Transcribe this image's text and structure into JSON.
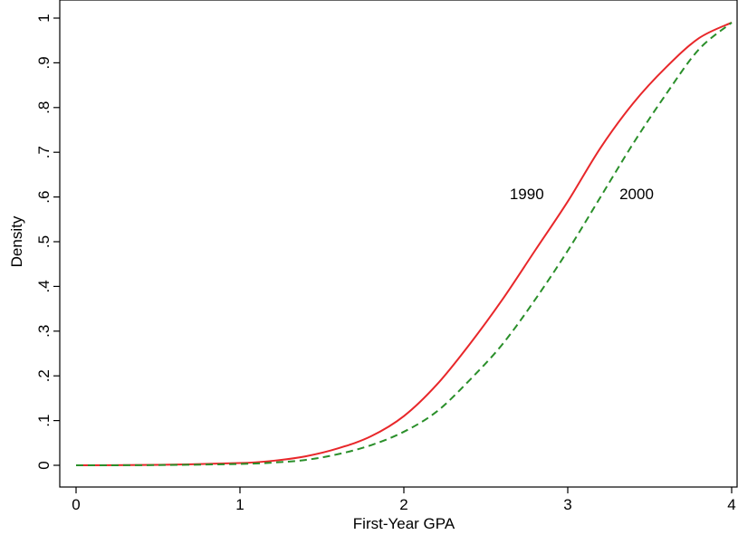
{
  "chart_data": {
    "type": "line",
    "title": "",
    "xlabel": "First-Year GPA",
    "ylabel": "Density",
    "xlim": [
      0,
      4
    ],
    "ylim": [
      0,
      1
    ],
    "x_ticks": [
      0,
      1,
      2,
      3,
      4
    ],
    "x_tick_labels": [
      "0",
      "1",
      "2",
      "3",
      "4"
    ],
    "y_ticks": [
      0,
      0.1,
      0.2,
      0.3,
      0.4,
      0.5,
      0.6,
      0.7,
      0.8,
      0.9,
      1
    ],
    "y_tick_labels": [
      "0",
      ".1",
      ".2",
      ".3",
      ".4",
      ".5",
      ".6",
      ".7",
      ".8",
      ".9",
      "1"
    ],
    "grid": false,
    "legend": "none",
    "series": [
      {
        "label": "1990",
        "color": "#e8272a",
        "line_style": "solid",
        "x": [
          0,
          0.5,
          1.0,
          1.2,
          1.4,
          1.6,
          1.8,
          2.0,
          2.2,
          2.4,
          2.6,
          2.8,
          3.0,
          3.2,
          3.4,
          3.6,
          3.8,
          4.0
        ],
        "y": [
          0,
          0.001,
          0.005,
          0.01,
          0.02,
          0.038,
          0.065,
          0.11,
          0.18,
          0.27,
          0.37,
          0.48,
          0.59,
          0.71,
          0.81,
          0.89,
          0.955,
          0.99
        ]
      },
      {
        "label": "2000",
        "color": "#2a8f2a",
        "line_style": "dashed",
        "x": [
          0,
          0.5,
          1.0,
          1.2,
          1.4,
          1.6,
          1.8,
          2.0,
          2.2,
          2.4,
          2.6,
          2.8,
          3.0,
          3.2,
          3.4,
          3.6,
          3.8,
          4.0
        ],
        "y": [
          0,
          0.0005,
          0.003,
          0.006,
          0.012,
          0.025,
          0.045,
          0.075,
          0.12,
          0.19,
          0.27,
          0.37,
          0.48,
          0.6,
          0.72,
          0.83,
          0.93,
          0.99
        ]
      }
    ],
    "annotations": [
      {
        "text": "1990",
        "x": 2.75,
        "y": 0.595
      },
      {
        "text": "2000",
        "x": 3.42,
        "y": 0.595
      }
    ]
  }
}
